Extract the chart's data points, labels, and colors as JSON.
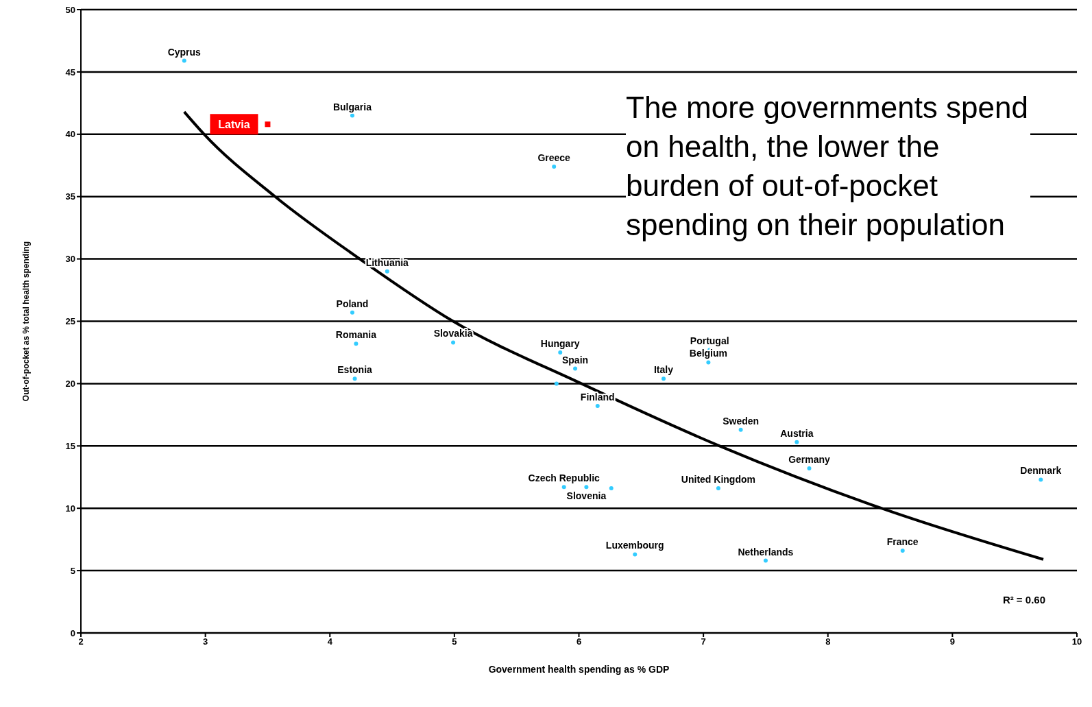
{
  "chart_data": {
    "type": "scatter",
    "xlabel": "Government health spending as % GDP",
    "ylabel": "Out-of-pocket as % total health spending",
    "xlim": [
      2,
      10
    ],
    "xticks": [
      2,
      3,
      4,
      5,
      6,
      7,
      8,
      9,
      10
    ],
    "ylim": [
      0,
      50
    ],
    "yticks": [
      0,
      5,
      10,
      15,
      20,
      25,
      30,
      35,
      40,
      45,
      50
    ],
    "grid": "y",
    "marker": "circle",
    "series": [
      {
        "color": "#33ccff",
        "x": [
          2.83,
          4.18,
          5.8,
          4.46,
          4.18,
          4.21,
          4.99,
          4.2,
          5.85,
          5.97,
          5.82,
          6.15,
          6.68,
          7.05,
          7.04,
          7.3,
          7.75,
          7.85,
          5.88,
          6.06,
          6.26,
          7.12,
          9.71,
          6.45,
          7.5,
          8.6
        ],
        "values": [
          45.9,
          41.5,
          37.4,
          29.0,
          25.7,
          23.2,
          23.3,
          20.4,
          22.5,
          21.2,
          20.0,
          18.2,
          20.4,
          22.7,
          21.7,
          16.3,
          15.3,
          13.2,
          11.7,
          11.7,
          11.6,
          11.6,
          12.3,
          6.3,
          5.8,
          6.6
        ],
        "value_labels": [
          "Cyprus",
          "Bulgaria",
          "Greece",
          "Lithuania",
          "Poland",
          "Romania",
          "Slovakia",
          "Estonia",
          "Hungary",
          "Spain",
          null,
          "Finland",
          "Italy",
          "Portugal",
          "Belgium",
          "Sweden",
          "Austria",
          "Germany",
          "Czech Republic",
          "Slovenia",
          null,
          "United Kingdom",
          "Denmark",
          "Luxembourg",
          "Netherlands",
          "France"
        ]
      },
      {
        "name": "Latvia",
        "color": "#ff0000",
        "marker": "square",
        "x": [
          3.5
        ],
        "values": [
          40.8
        ]
      },
      {
        "type": "line",
        "color": "#000000",
        "line_style": "solid",
        "marker": "none",
        "x": [
          2.83,
          2.99,
          3.56,
          4.24,
          4.99,
          6.02,
          7.13,
          8.43,
          9.73
        ],
        "values": [
          41.8,
          40,
          35,
          30,
          25,
          20,
          15,
          10,
          5.9
        ]
      }
    ],
    "annotations": [
      "The more governments spend on health, the lower the burden of out-of-pocket spending on their population",
      "R² = 0.60"
    ]
  }
}
